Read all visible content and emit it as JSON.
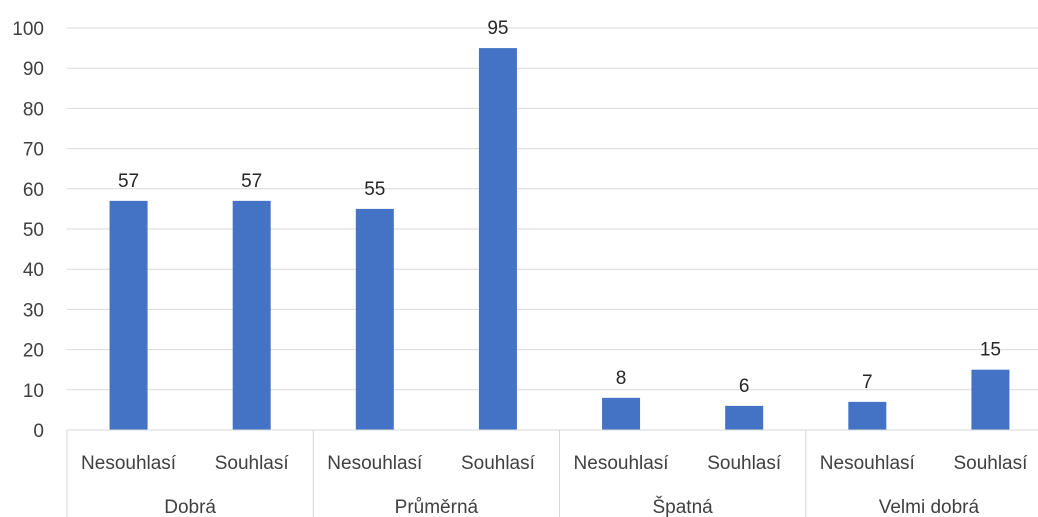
{
  "chart_data": {
    "type": "bar",
    "title": "",
    "xlabel": "",
    "ylabel": "",
    "ylim": [
      0,
      100
    ],
    "y_ticks": [
      0,
      10,
      20,
      30,
      40,
      50,
      60,
      70,
      80,
      90,
      100
    ],
    "grid": "horizontal",
    "legend": "none",
    "bar_color": "#4472C4",
    "groups": [
      {
        "label": "Dobrá",
        "bars": [
          {
            "category": "Nesouhlasí",
            "value": 57
          },
          {
            "category": "Souhlasí",
            "value": 57
          }
        ]
      },
      {
        "label": "Průměrná",
        "bars": [
          {
            "category": "Nesouhlasí",
            "value": 55
          },
          {
            "category": "Souhlasí",
            "value": 95
          }
        ]
      },
      {
        "label": "Špatná",
        "bars": [
          {
            "category": "Nesouhlasí",
            "value": 8
          },
          {
            "category": "Souhlasí",
            "value": 6
          }
        ]
      },
      {
        "label": "Velmi dobrá",
        "bars": [
          {
            "category": "Nesouhlasí",
            "value": 7
          },
          {
            "category": "Souhlasí",
            "value": 15
          }
        ]
      }
    ]
  }
}
